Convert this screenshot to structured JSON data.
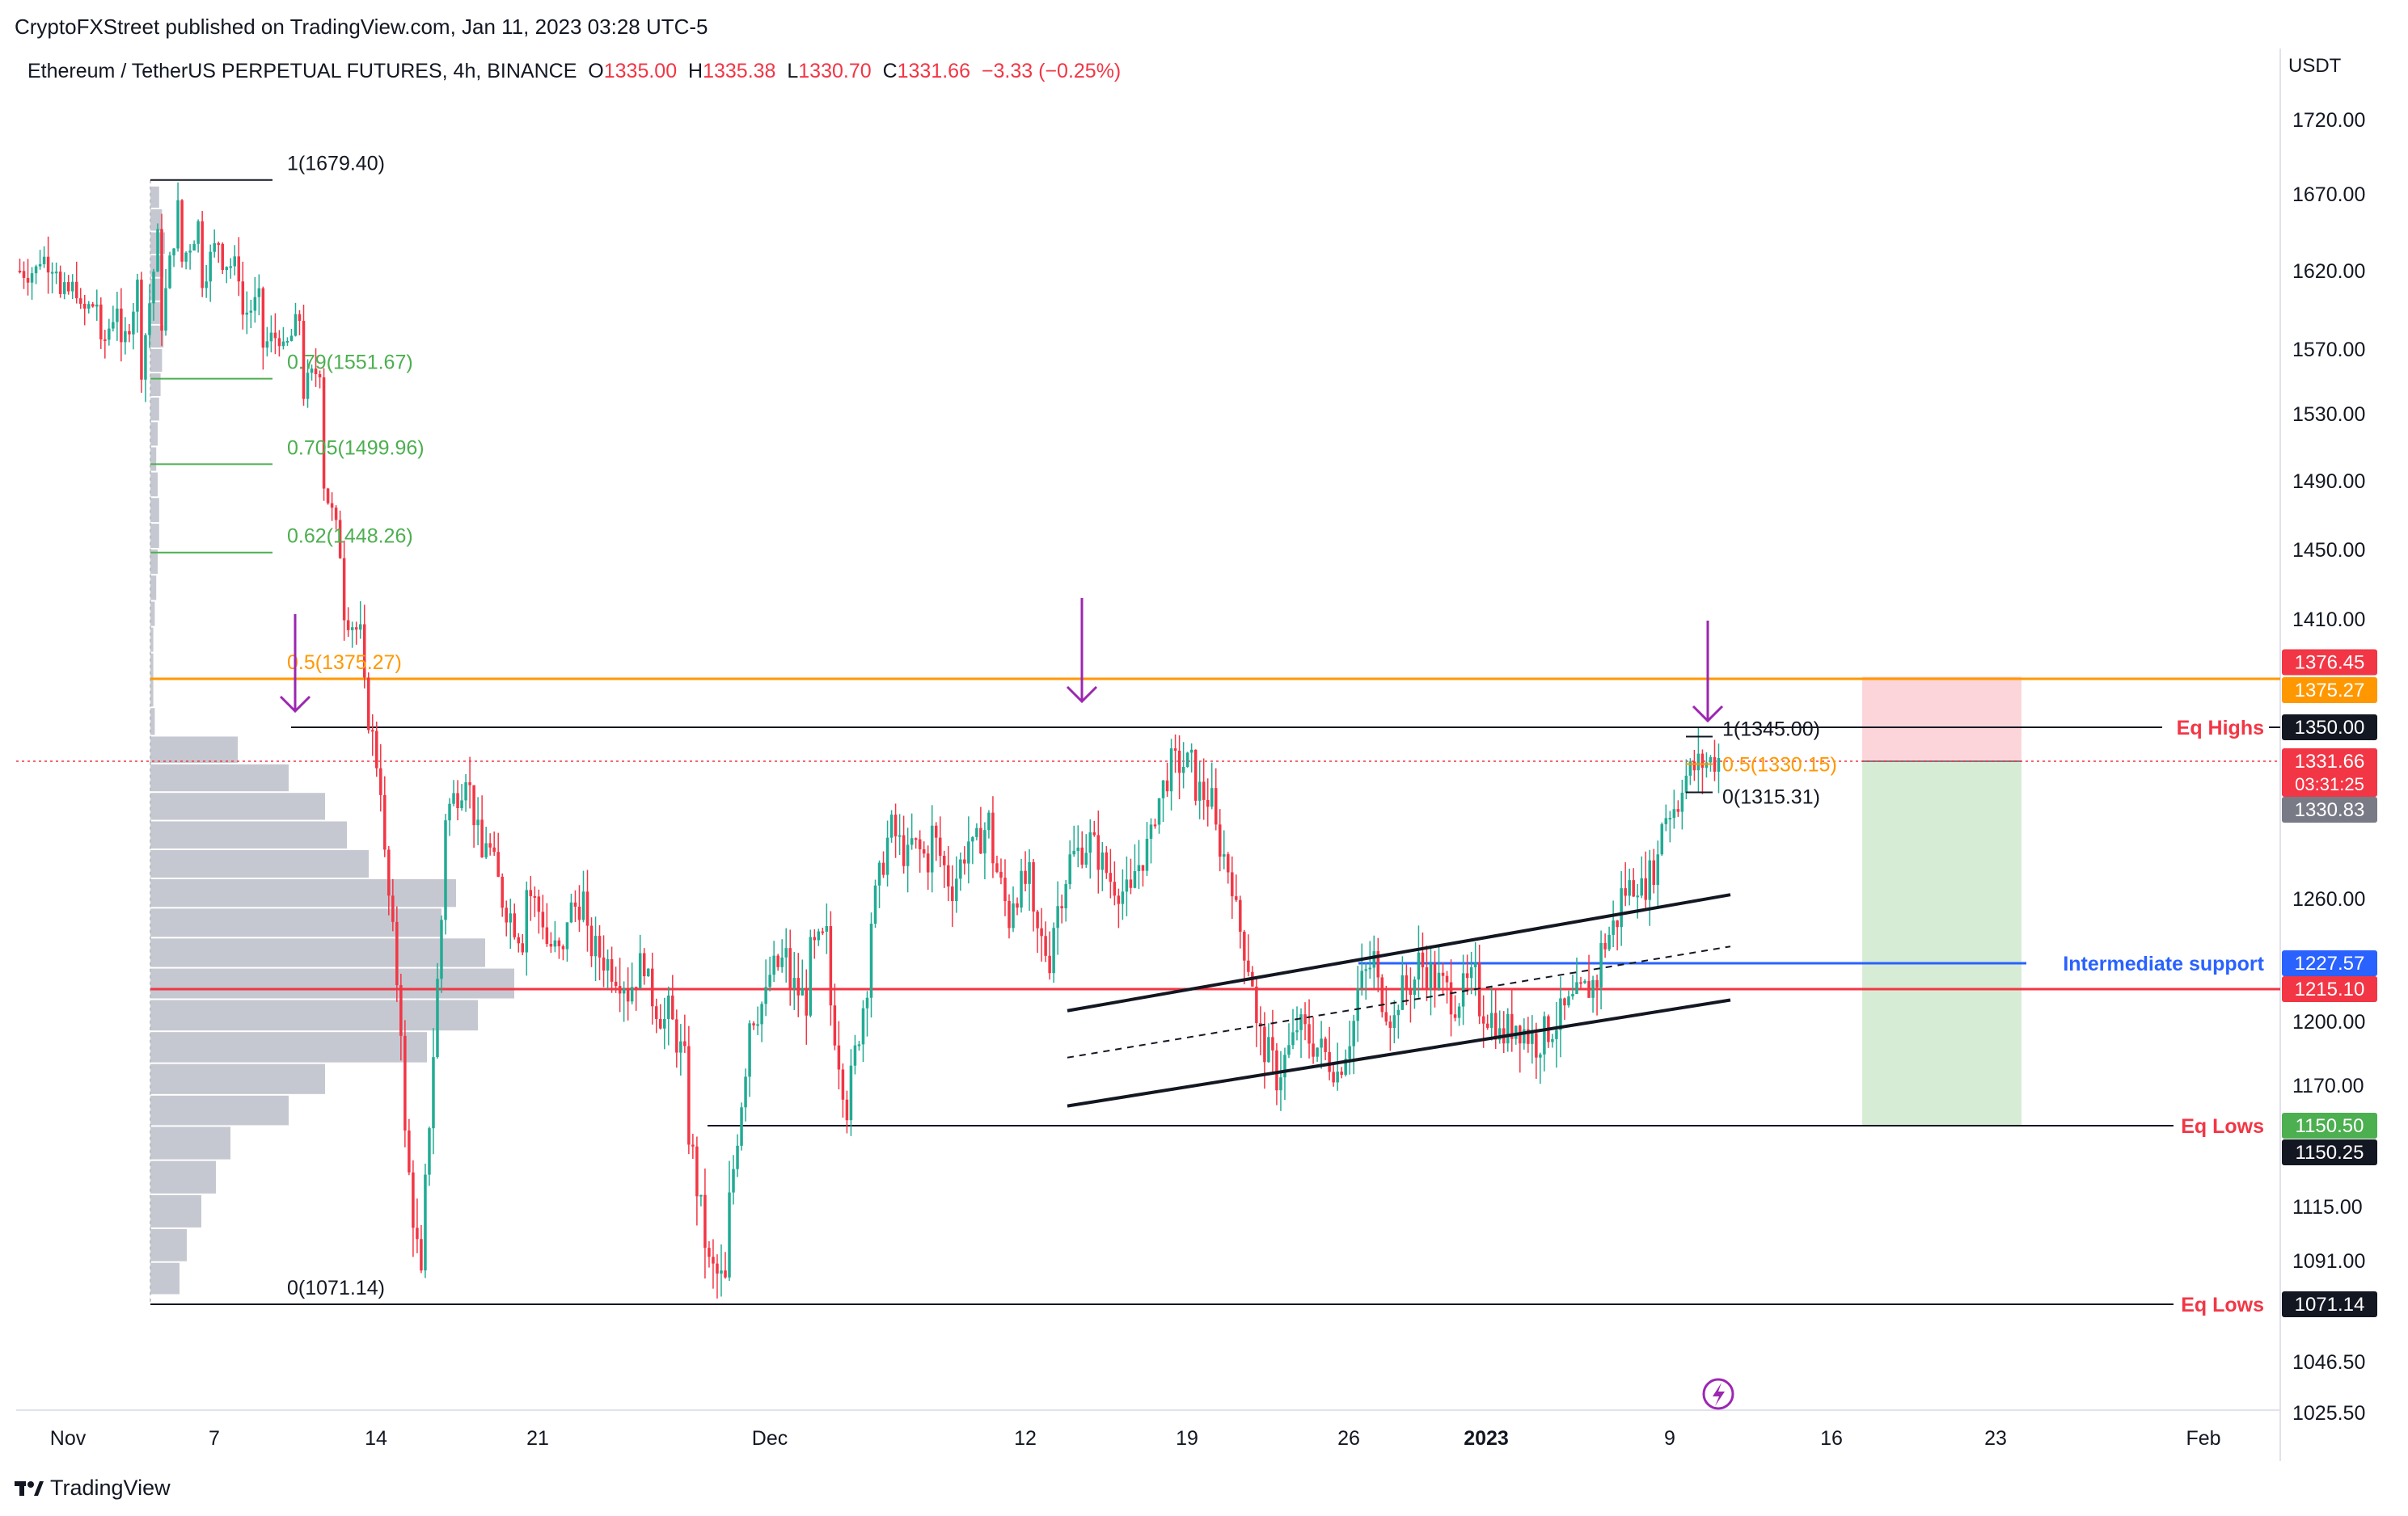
{
  "header": {
    "published": "CryptoFXStreet published on TradingView.com, Jan 11, 2023 03:28 UTC-5",
    "symbol": "Ethereum / TetherUS PERPETUAL FUTURES, 4h, BINANCE",
    "open_label": "O",
    "open": "1335.00",
    "high_label": "H",
    "high": "1335.38",
    "low_label": "L",
    "low": "1330.70",
    "close_label": "C",
    "close": "1331.66",
    "change": "−3.33 (−0.25%)"
  },
  "footer": {
    "brand": "TradingView"
  },
  "colors": {
    "up": "#22ab94",
    "down": "#f23645",
    "fib_green": "#4caf50",
    "fib_orange": "#ff9800",
    "support_blue": "#2962ff",
    "support_red": "#f23645",
    "arrow": "#9c27b0",
    "volume_profile": "#c5c8d0",
    "tp_zone": "#d7ecd4",
    "sl_zone": "#fbd5d9"
  },
  "chart_data": {
    "type": "candlestick",
    "timeframe": "4h",
    "currency_label": "USDT",
    "ylim": [
      1025.5,
      1745
    ],
    "y_ticks": [
      "1720.00",
      "1670.00",
      "1620.00",
      "1570.00",
      "1530.00",
      "1490.00",
      "1450.00",
      "1410.00",
      "1260.00",
      "1200.00",
      "1170.00",
      "1115.00",
      "1091.00",
      "1046.50",
      "1025.50"
    ],
    "x_ticks": [
      "Nov",
      "7",
      "14",
      "21",
      "Dec",
      "12",
      "19",
      "26",
      "2023",
      "9",
      "16",
      "23",
      "Feb"
    ],
    "price_path": [
      [
        1620,
        1620
      ],
      [
        1630,
        1625
      ],
      [
        1600,
        1610
      ],
      [
        1590,
        1600
      ],
      [
        1560,
        1600
      ],
      [
        1555,
        1610
      ],
      [
        1540,
        1640
      ],
      [
        1570,
        1660
      ],
      [
        1620,
        1650
      ],
      [
        1610,
        1640
      ],
      [
        1630,
        1620
      ],
      [
        1590,
        1600
      ],
      [
        1570,
        1580
      ],
      [
        1560,
        1590
      ],
      [
        1540,
        1560
      ],
      [
        1500,
        1450
      ],
      [
        1420,
        1400
      ],
      [
        1380,
        1320
      ],
      [
        1300,
        1200
      ],
      [
        1160,
        1080
      ],
      [
        1090,
        1250
      ],
      [
        1300,
        1320
      ],
      [
        1340,
        1280
      ],
      [
        1300,
        1260
      ],
      [
        1260,
        1240
      ],
      [
        1270,
        1250
      ],
      [
        1240,
        1230
      ],
      [
        1250,
        1260
      ],
      [
        1240,
        1230
      ],
      [
        1230,
        1220
      ],
      [
        1210,
        1230
      ],
      [
        1220,
        1200
      ],
      [
        1210,
        1180
      ],
      [
        1160,
        1100
      ],
      [
        1090,
        1080
      ],
      [
        1100,
        1180
      ],
      [
        1200,
        1210
      ],
      [
        1220,
        1230
      ],
      [
        1220,
        1210
      ],
      [
        1230,
        1240
      ],
      [
        1220,
        1160
      ],
      [
        1160,
        1220
      ],
      [
        1240,
        1290
      ],
      [
        1300,
        1280
      ],
      [
        1290,
        1280
      ],
      [
        1300,
        1270
      ],
      [
        1260,
        1290
      ],
      [
        1280,
        1300
      ],
      [
        1290,
        1250
      ],
      [
        1260,
        1270
      ],
      [
        1250,
        1230
      ],
      [
        1240,
        1280
      ],
      [
        1280,
        1290
      ],
      [
        1290,
        1270
      ],
      [
        1270,
        1260
      ],
      [
        1270,
        1290
      ],
      [
        1300,
        1330
      ],
      [
        1330,
        1330
      ],
      [
        1320,
        1310
      ],
      [
        1300,
        1270
      ],
      [
        1260,
        1220
      ],
      [
        1200,
        1180
      ],
      [
        1170,
        1190
      ],
      [
        1200,
        1190
      ],
      [
        1190,
        1180
      ],
      [
        1170,
        1200
      ],
      [
        1210,
        1230
      ],
      [
        1220,
        1200
      ],
      [
        1210,
        1220
      ],
      [
        1230,
        1220
      ],
      [
        1220,
        1210
      ],
      [
        1210,
        1220
      ],
      [
        1210,
        1200
      ],
      [
        1190,
        1200
      ],
      [
        1200,
        1190
      ],
      [
        1190,
        1200
      ],
      [
        1200,
        1210
      ],
      [
        1210,
        1220
      ],
      [
        1230,
        1250
      ],
      [
        1260,
        1270
      ],
      [
        1260,
        1280
      ],
      [
        1300,
        1310
      ],
      [
        1320,
        1330
      ],
      [
        1330,
        1333
      ]
    ],
    "volume_profile_rows": [
      [
        1675,
        6
      ],
      [
        1660,
        8
      ],
      [
        1645,
        10
      ],
      [
        1630,
        9
      ],
      [
        1615,
        8
      ],
      [
        1600,
        7
      ],
      [
        1585,
        9
      ],
      [
        1570,
        8
      ],
      [
        1555,
        7
      ],
      [
        1540,
        6
      ],
      [
        1525,
        5
      ],
      [
        1510,
        4
      ],
      [
        1495,
        5
      ],
      [
        1480,
        6
      ],
      [
        1465,
        6
      ],
      [
        1450,
        5
      ],
      [
        1435,
        4
      ],
      [
        1420,
        3
      ],
      [
        1405,
        2
      ],
      [
        1390,
        2
      ],
      [
        1375,
        2
      ],
      [
        1360,
        3
      ],
      [
        1345,
        60
      ],
      [
        1330,
        95
      ],
      [
        1315,
        120
      ],
      [
        1300,
        135
      ],
      [
        1285,
        150
      ],
      [
        1270,
        210
      ],
      [
        1255,
        200
      ],
      [
        1240,
        230
      ],
      [
        1225,
        250
      ],
      [
        1210,
        225
      ],
      [
        1195,
        190
      ],
      [
        1180,
        120
      ],
      [
        1165,
        95
      ],
      [
        1150,
        55
      ],
      [
        1135,
        45
      ],
      [
        1120,
        35
      ],
      [
        1105,
        25
      ],
      [
        1090,
        20
      ]
    ],
    "fibonacci_left": {
      "levels": [
        {
          "label": "1(1679.40)",
          "value": 1679.4
        },
        {
          "label": "0.79(1551.67)",
          "value": 1551.67
        },
        {
          "label": "0.705(1499.96)",
          "value": 1499.96
        },
        {
          "label": "0.62(1448.26)",
          "value": 1448.26
        },
        {
          "label": "0.5(1375.27)",
          "value": 1375.27
        },
        {
          "label": "0(1071.14)",
          "value": 1071.14
        }
      ]
    },
    "fibonacci_right": {
      "levels": [
        {
          "label": "1(1345.00)",
          "value": 1345.0
        },
        {
          "label": "0.5(1330.15)",
          "value": 1330.15
        },
        {
          "label": "0(1315.31)",
          "value": 1315.31
        }
      ]
    },
    "horizontal_levels": [
      {
        "name": "Eq Highs",
        "value": 1350.0
      },
      {
        "name": "Intermediate support",
        "value": 1227.57
      },
      {
        "name": "",
        "value": 1215.1
      },
      {
        "name": "Eq Lows",
        "value": 1150.5
      },
      {
        "name": "Eq Lows",
        "value": 1071.14
      }
    ],
    "price_tags": [
      {
        "text": "1376.45",
        "value": 1376.45,
        "color": "#f23645"
      },
      {
        "text": "1375.27",
        "value": 1375.27,
        "color": "#ff9800"
      },
      {
        "text": "1350.00",
        "value": 1350.0,
        "color": "#131722"
      },
      {
        "text": "1331.66",
        "value": 1331.66,
        "color": "#f23645",
        "sub": "03:31:25"
      },
      {
        "text": "1330.83",
        "value": 1330.83,
        "color": "#787b86"
      },
      {
        "text": "1227.57",
        "value": 1227.57,
        "color": "#2962ff"
      },
      {
        "text": "1215.10",
        "value": 1215.1,
        "color": "#f23645"
      },
      {
        "text": "1150.50",
        "value": 1150.5,
        "color": "#4caf50"
      },
      {
        "text": "1150.25",
        "value": 1150.25,
        "color": "#131722"
      },
      {
        "text": "1071.14",
        "value": 1071.14,
        "color": "#131722"
      }
    ],
    "trade_setup": {
      "stop_loss": 1376.45,
      "entry": 1331.66,
      "target": 1150.5
    },
    "channel": {
      "upper": [
        1205,
        1262
      ],
      "lower": [
        1160,
        1210
      ],
      "mid": [
        1183,
        1236
      ]
    }
  }
}
